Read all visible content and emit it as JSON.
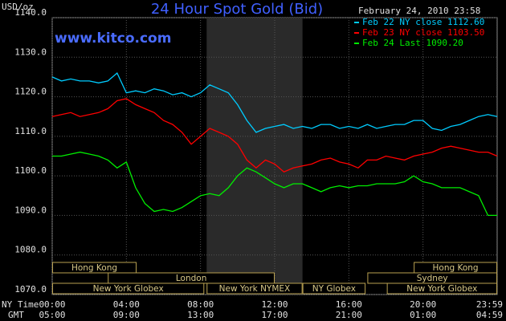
{
  "chart_data": {
    "type": "line",
    "title": "24 Hour Spot Gold (Bid)",
    "watermark": "www.kitco.com",
    "y_axis_label": "USD/oz",
    "date_label": "February 24, 2010 23:58",
    "x_row_labels": [
      "NY Time",
      "GMT"
    ],
    "x": [
      0,
      0.5,
      1,
      1.5,
      2,
      2.5,
      3,
      3.5,
      4,
      4.5,
      5,
      5.5,
      6,
      6.5,
      7,
      7.5,
      8,
      8.5,
      9,
      9.5,
      10,
      10.5,
      11,
      11.5,
      12,
      12.5,
      13,
      13.5,
      14,
      14.5,
      15,
      15.5,
      16,
      16.5,
      17,
      17.5,
      18,
      18.5,
      19,
      19.5,
      20,
      20.5,
      21,
      21.5,
      22,
      22.5,
      23,
      23.5,
      24
    ],
    "series": [
      {
        "name": "Feb 22 NY close 1112.60",
        "color": "#00ccff",
        "values": [
          1125,
          1124,
          1124.5,
          1124,
          1124,
          1123.5,
          1124,
          1126,
          1121,
          1121.5,
          1121,
          1122,
          1121.5,
          1120.5,
          1121,
          1120,
          1121,
          1123,
          1122,
          1121,
          1118,
          1114,
          1111,
          1112,
          1112.5,
          1113,
          1112,
          1112.5,
          1112,
          1113,
          1113,
          1112,
          1112.5,
          1112,
          1113,
          1112,
          1112.5,
          1113,
          1113,
          1114,
          1114,
          1112,
          1111.5,
          1112.5,
          1113,
          1114,
          1115,
          1115.5,
          1115
        ]
      },
      {
        "name": "Feb 23 NY close 1103.50",
        "color": "#ff0000",
        "values": [
          1115,
          1115.5,
          1116,
          1115,
          1115.5,
          1116,
          1117,
          1119,
          1119.5,
          1118,
          1117,
          1116,
          1114,
          1113,
          1111,
          1108,
          1110,
          1112,
          1111,
          1110,
          1108,
          1104,
          1102,
          1104,
          1103,
          1101,
          1102,
          1102.5,
          1103,
          1104,
          1104.5,
          1103.5,
          1103,
          1102,
          1104,
          1104,
          1105,
          1104.5,
          1104,
          1105,
          1105.5,
          1106,
          1107,
          1107.5,
          1107,
          1106.5,
          1106,
          1106,
          1105
        ]
      },
      {
        "name": "Feb 24 Last 1090.20",
        "color": "#00ee00",
        "values": [
          1105,
          1105,
          1105.5,
          1106,
          1105.5,
          1105,
          1104,
          1102,
          1103.5,
          1097,
          1093,
          1091,
          1091.5,
          1091,
          1092,
          1093.5,
          1095,
          1095.5,
          1095,
          1097,
          1100,
          1102,
          1101,
          1099.5,
          1098,
          1097,
          1098,
          1098,
          1097,
          1096,
          1097,
          1097.5,
          1097,
          1097.5,
          1097.5,
          1098,
          1098,
          1098,
          1098.5,
          1100,
          1098.5,
          1098,
          1097,
          1097,
          1097,
          1096,
          1095,
          1090,
          1090
        ]
      }
    ],
    "xlim": [
      0,
      24
    ],
    "xticks": [
      {
        "value": 0,
        "label": "00:00"
      },
      {
        "value": 4,
        "label": "04:00"
      },
      {
        "value": 8,
        "label": "08:00"
      },
      {
        "value": 12,
        "label": "12:00"
      },
      {
        "value": 16,
        "label": "16:00"
      },
      {
        "value": 20,
        "label": "20:00"
      },
      {
        "value": 23.983,
        "label": "23:59"
      }
    ],
    "gmt_ticks": [
      {
        "value": 0,
        "label": "05:00"
      },
      {
        "value": 4,
        "label": "09:00"
      },
      {
        "value": 8,
        "label": "13:00"
      },
      {
        "value": 12,
        "label": "17:00"
      },
      {
        "value": 16,
        "label": "21:00"
      },
      {
        "value": 20,
        "label": "01:00"
      },
      {
        "value": 23.983,
        "label": "04:59"
      }
    ],
    "ylim": [
      1070,
      1140
    ],
    "yticks": [
      {
        "value": 1070,
        "label": "1070.0"
      },
      {
        "value": 1080,
        "label": "1080.0"
      },
      {
        "value": 1090,
        "label": "1090.0"
      },
      {
        "value": 1100,
        "label": "1100.0"
      },
      {
        "value": 1110,
        "label": "1110.0"
      },
      {
        "value": 1120,
        "label": "1120.0"
      },
      {
        "value": 1130,
        "label": "1130.0"
      },
      {
        "value": 1140,
        "label": "1140.0"
      }
    ],
    "grid": true,
    "highlight_x": [
      8.33,
      13.5
    ],
    "session_rows": [
      [
        {
          "label": "Hong Kong",
          "start": 0,
          "end": 4.55
        },
        {
          "label": "Hong Kong",
          "start": 19.5,
          "end": 24
        }
      ],
      [
        {
          "label": "London",
          "start": 3,
          "end": 12
        },
        {
          "label": "Sydney",
          "start": 17,
          "end": 24
        }
      ],
      [
        {
          "label": "New York Globex",
          "start": 0,
          "end": 8.2
        },
        {
          "label": "New York NYMEX",
          "start": 8.33,
          "end": 13.5
        },
        {
          "label": "NY Globex",
          "start": 13.5,
          "end": 16.9
        },
        {
          "label": "New York Globex",
          "start": 18.05,
          "end": 24
        }
      ]
    ]
  }
}
